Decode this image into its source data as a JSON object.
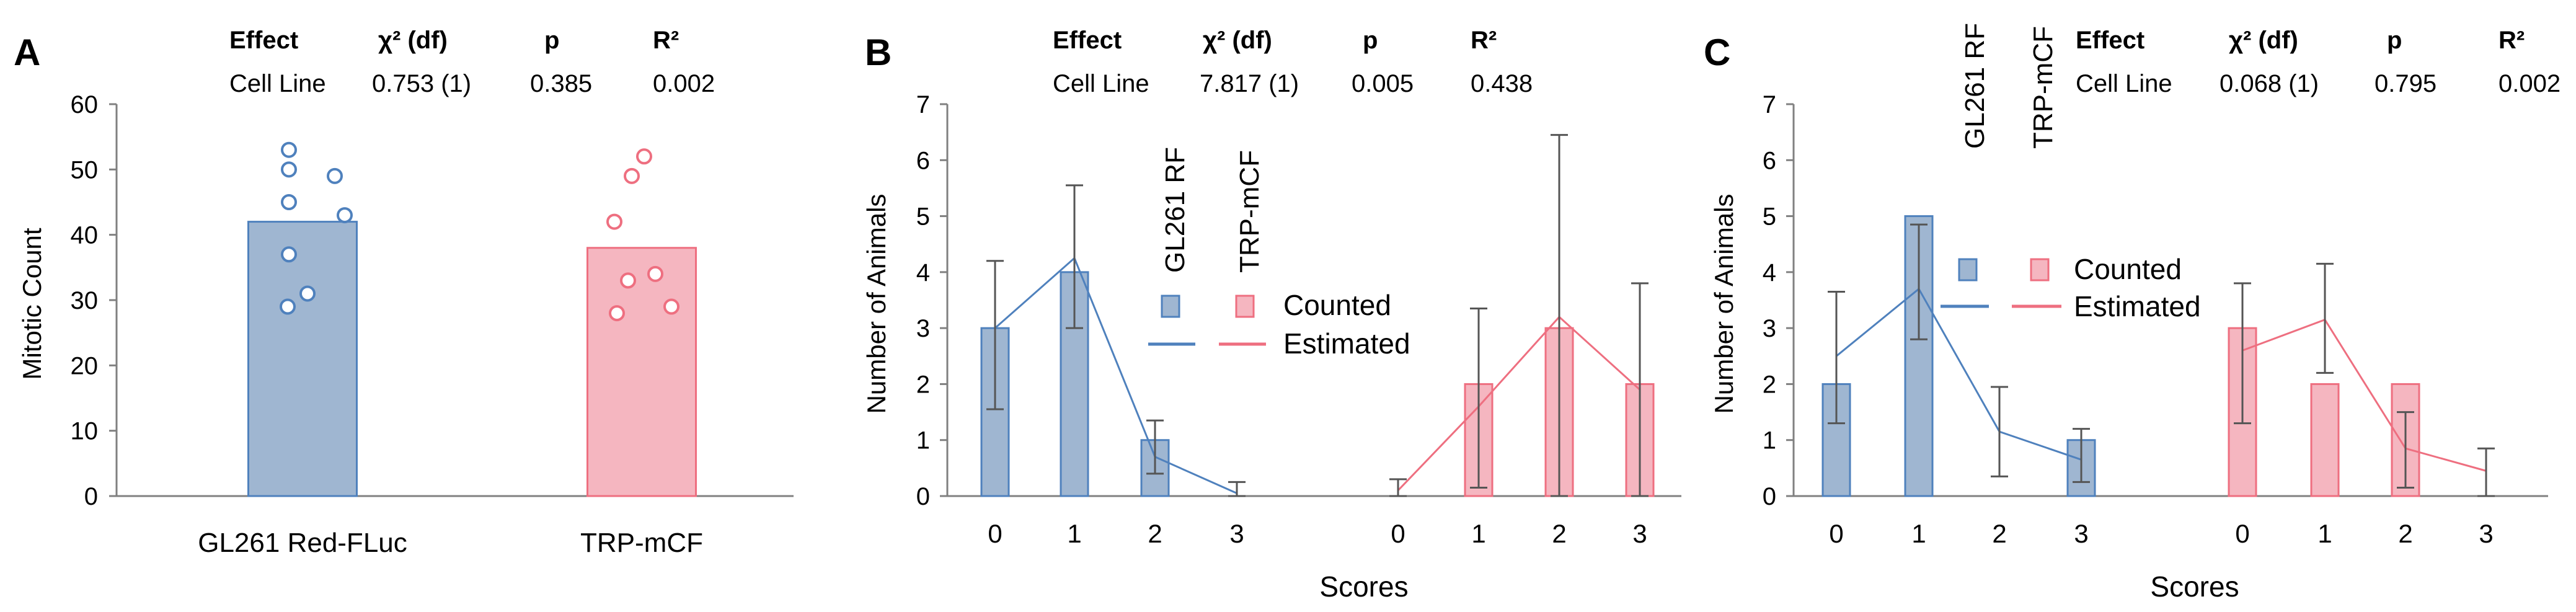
{
  "colors": {
    "blue_fill": "#9fb6d1",
    "blue_line": "#4f81bd",
    "red_fill": "#f5b6c0",
    "red_line": "#ee6f80",
    "error": "#555555",
    "axis": "#808080"
  },
  "panels": [
    {
      "letter": "A",
      "stats_header": [
        "Effect",
        "χ² (df)",
        "p",
        "R²"
      ],
      "stats_row": [
        "Cell Line",
        "0.753 (1)",
        "0.385",
        "0.002"
      ]
    },
    {
      "letter": "B",
      "stats_header": [
        "Effect",
        "χ² (df)",
        "p",
        "R²"
      ],
      "stats_row": [
        "Cell Line",
        "7.817 (1)",
        "0.005",
        "0.438"
      ]
    },
    {
      "letter": "C",
      "stats_header": [
        "Effect",
        "χ² (df)",
        "p",
        "R²"
      ],
      "stats_row": [
        "Cell Line",
        "0.068 (1)",
        "0.795",
        "0.002"
      ]
    }
  ],
  "chart_data": [
    {
      "type": "bar",
      "panel": "A",
      "categories": [
        "GL261 Red-FLuc",
        "TRP-mCF"
      ],
      "values": [
        42,
        38
      ],
      "points": [
        [
          53,
          50,
          49,
          45,
          43,
          37,
          31,
          29
        ],
        [
          52,
          49,
          42,
          34,
          33,
          29,
          28
        ]
      ],
      "ylabel": "Mitotic Count",
      "ylim": [
        0,
        60
      ],
      "yticks": [
        "0",
        "10",
        "20",
        "30",
        "40",
        "50",
        "60"
      ]
    },
    {
      "type": "bar",
      "panel": "B",
      "xlabel": "Scores",
      "ylabel": "Number of Animals",
      "ylim": [
        0,
        7
      ],
      "yticks": [
        "0",
        "1",
        "2",
        "3",
        "4",
        "5",
        "6",
        "7"
      ],
      "score_labels": [
        "0",
        "1",
        "2",
        "3"
      ],
      "legend": {
        "series": [
          "GL261 RF",
          "TRP-mCF"
        ],
        "rows": [
          "Counted",
          "Estimated"
        ]
      },
      "series": [
        {
          "name": "GL261 RF",
          "counted": [
            3,
            4,
            1,
            0
          ],
          "estimated": [
            3.0,
            4.25,
            0.7,
            0.05
          ],
          "err_low": [
            1.55,
            3.0,
            0.4,
            0.0
          ],
          "err_high": [
            4.2,
            5.55,
            1.35,
            0.25
          ]
        },
        {
          "name": "TRP-mCF",
          "counted": [
            0,
            2,
            3,
            2
          ],
          "estimated": [
            0.1,
            1.6,
            3.2,
            1.9
          ],
          "err_low": [
            0.0,
            0.15,
            0.0,
            0.0
          ],
          "err_high": [
            0.3,
            3.35,
            6.45,
            3.8
          ]
        }
      ]
    },
    {
      "type": "bar",
      "panel": "C",
      "xlabel": "Scores",
      "ylabel": "Number of Animals",
      "ylim": [
        0,
        7
      ],
      "yticks": [
        "0",
        "1",
        "2",
        "3",
        "4",
        "5",
        "6",
        "7"
      ],
      "score_labels": [
        "0",
        "1",
        "2",
        "3"
      ],
      "legend": {
        "series": [
          "GL261 RF",
          "TRP-mCF"
        ],
        "rows": [
          "Counted",
          "Estimated"
        ]
      },
      "series": [
        {
          "name": "GL261 RF",
          "counted": [
            2,
            5,
            0,
            1
          ],
          "estimated": [
            2.5,
            3.7,
            1.15,
            0.65
          ],
          "err_low": [
            1.3,
            2.8,
            0.35,
            0.25
          ],
          "err_high": [
            3.65,
            4.85,
            1.95,
            1.2
          ]
        },
        {
          "name": "TRP-mCF",
          "counted": [
            3,
            2,
            2,
            0
          ],
          "estimated": [
            2.6,
            3.15,
            0.85,
            0.45
          ],
          "err_low": [
            1.3,
            2.2,
            0.15,
            0.0
          ],
          "err_high": [
            3.8,
            4.15,
            1.5,
            0.85
          ]
        }
      ]
    }
  ]
}
